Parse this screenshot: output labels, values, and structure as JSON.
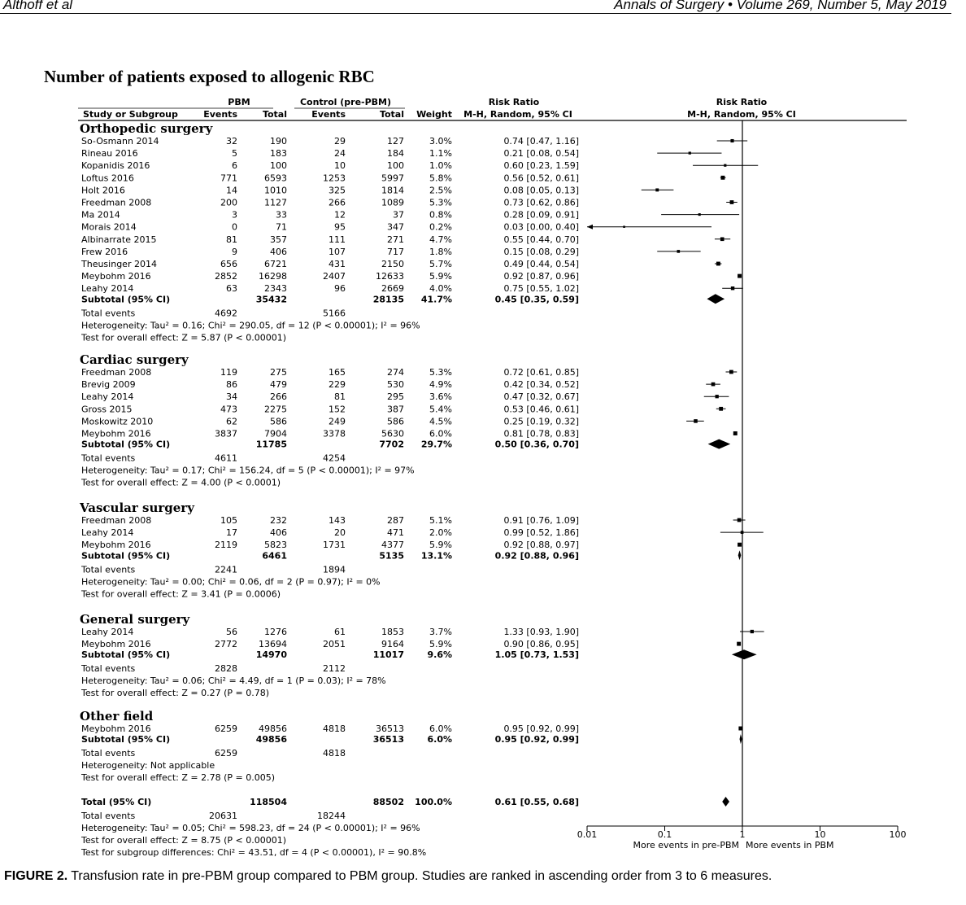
{
  "running_head": {
    "left": "Althoff et al",
    "right": "Annals of Surgery • Volume 269, Number 5, May 2019"
  },
  "figure_title": "Number of patients exposed to allogenic RBC",
  "caption": {
    "label": "FIGURE 2.",
    "text": "Transfusion rate in pre-PBM group compared to PBM group. Studies are ranked in ascending order from 3 to 6 measures."
  },
  "chart_data": {
    "type": "forest",
    "headers": {
      "group_pbm": "PBM",
      "group_control": "Control (pre-PBM)",
      "study": "Study or Subgroup",
      "events": "Events",
      "total": "Total",
      "events2": "Events",
      "total2": "Total",
      "weight": "Weight",
      "rr_title": "Risk Ratio",
      "rr_method": "M-H, Random, 95% CI",
      "plot_title": "Risk Ratio",
      "plot_method": "M-H, Random, 95% CI"
    },
    "groups": [
      {
        "name": "Orthopedic surgery",
        "studies": [
          {
            "name": "So-Osmann 2014",
            "e1": "32",
            "t1": "190",
            "e2": "29",
            "t2": "127",
            "w": "3.0%",
            "ci": "0.74 [0.47, 1.16]",
            "rr": 0.74,
            "lo": 0.47,
            "hi": 1.16
          },
          {
            "name": "Rineau 2016",
            "e1": "5",
            "t1": "183",
            "e2": "24",
            "t2": "184",
            "w": "1.1%",
            "ci": "0.21 [0.08, 0.54]",
            "rr": 0.21,
            "lo": 0.08,
            "hi": 0.54
          },
          {
            "name": "Kopanidis 2016",
            "e1": "6",
            "t1": "100",
            "e2": "10",
            "t2": "100",
            "w": "1.0%",
            "ci": "0.60 [0.23, 1.59]",
            "rr": 0.6,
            "lo": 0.23,
            "hi": 1.59
          },
          {
            "name": "Loftus 2016",
            "e1": "771",
            "t1": "6593",
            "e2": "1253",
            "t2": "5997",
            "w": "5.8%",
            "ci": "0.56 [0.52, 0.61]",
            "rr": 0.56,
            "lo": 0.52,
            "hi": 0.61
          },
          {
            "name": "Holt 2016",
            "e1": "14",
            "t1": "1010",
            "e2": "325",
            "t2": "1814",
            "w": "2.5%",
            "ci": "0.08 [0.05, 0.13]",
            "rr": 0.08,
            "lo": 0.05,
            "hi": 0.13
          },
          {
            "name": "Freedman 2008",
            "e1": "200",
            "t1": "1127",
            "e2": "266",
            "t2": "1089",
            "w": "5.3%",
            "ci": "0.73 [0.62, 0.86]",
            "rr": 0.73,
            "lo": 0.62,
            "hi": 0.86
          },
          {
            "name": "Ma 2014",
            "e1": "3",
            "t1": "33",
            "e2": "12",
            "t2": "37",
            "w": "0.8%",
            "ci": "0.28 [0.09, 0.91]",
            "rr": 0.28,
            "lo": 0.09,
            "hi": 0.91
          },
          {
            "name": "Morais 2014",
            "e1": "0",
            "t1": "71",
            "e2": "95",
            "t2": "347",
            "w": "0.2%",
            "ci": "0.03 [0.00, 0.40]",
            "rr": 0.03,
            "lo": 0.0,
            "hi": 0.4
          },
          {
            "name": "Albinarrate 2015",
            "e1": "81",
            "t1": "357",
            "e2": "111",
            "t2": "271",
            "w": "4.7%",
            "ci": "0.55 [0.44, 0.70]",
            "rr": 0.55,
            "lo": 0.44,
            "hi": 0.7
          },
          {
            "name": "Frew 2016",
            "e1": "9",
            "t1": "406",
            "e2": "107",
            "t2": "717",
            "w": "1.8%",
            "ci": "0.15 [0.08, 0.29]",
            "rr": 0.15,
            "lo": 0.08,
            "hi": 0.29
          },
          {
            "name": "Theusinger 2014",
            "e1": "656",
            "t1": "6721",
            "e2": "431",
            "t2": "2150",
            "w": "5.7%",
            "ci": "0.49 [0.44, 0.54]",
            "rr": 0.49,
            "lo": 0.44,
            "hi": 0.54
          },
          {
            "name": "Meybohm 2016",
            "e1": "2852",
            "t1": "16298",
            "e2": "2407",
            "t2": "12633",
            "w": "5.9%",
            "ci": "0.92 [0.87, 0.96]",
            "rr": 0.92,
            "lo": 0.87,
            "hi": 0.96
          },
          {
            "name": "Leahy 2014",
            "e1": "63",
            "t1": "2343",
            "e2": "96",
            "t2": "2669",
            "w": "4.0%",
            "ci": "0.75 [0.55, 1.02]",
            "rr": 0.75,
            "lo": 0.55,
            "hi": 1.02
          }
        ],
        "subtotal": {
          "name": "Subtotal (95% CI)",
          "t1": "35432",
          "t2": "28135",
          "w": "41.7%",
          "ci": "0.45 [0.35, 0.59]",
          "rr": 0.45,
          "lo": 0.35,
          "hi": 0.59
        },
        "total_events": {
          "label": "Total events",
          "e1": "4692",
          "e2": "5166"
        },
        "heterogeneity": "Heterogeneity: Tau² = 0.16; Chi² = 290.05, df = 12 (P < 0.00001); I² = 96%",
        "overall_effect": "Test for overall effect: Z = 5.87 (P < 0.00001)"
      },
      {
        "name": "Cardiac surgery",
        "studies": [
          {
            "name": "Freedman 2008",
            "e1": "119",
            "t1": "275",
            "e2": "165",
            "t2": "274",
            "w": "5.3%",
            "ci": "0.72 [0.61, 0.85]",
            "rr": 0.72,
            "lo": 0.61,
            "hi": 0.85
          },
          {
            "name": "Brevig 2009",
            "e1": "86",
            "t1": "479",
            "e2": "229",
            "t2": "530",
            "w": "4.9%",
            "ci": "0.42 [0.34, 0.52]",
            "rr": 0.42,
            "lo": 0.34,
            "hi": 0.52
          },
          {
            "name": "Leahy 2014",
            "e1": "34",
            "t1": "266",
            "e2": "81",
            "t2": "295",
            "w": "3.6%",
            "ci": "0.47 [0.32, 0.67]",
            "rr": 0.47,
            "lo": 0.32,
            "hi": 0.67
          },
          {
            "name": "Gross 2015",
            "e1": "473",
            "t1": "2275",
            "e2": "152",
            "t2": "387",
            "w": "5.4%",
            "ci": "0.53 [0.46, 0.61]",
            "rr": 0.53,
            "lo": 0.46,
            "hi": 0.61
          },
          {
            "name": "Moskowitz 2010",
            "e1": "62",
            "t1": "586",
            "e2": "249",
            "t2": "586",
            "w": "4.5%",
            "ci": "0.25 [0.19, 0.32]",
            "rr": 0.25,
            "lo": 0.19,
            "hi": 0.32
          },
          {
            "name": "Meybohm 2016",
            "e1": "3837",
            "t1": "7904",
            "e2": "3378",
            "t2": "5630",
            "w": "6.0%",
            "ci": "0.81 [0.78, 0.83]",
            "rr": 0.81,
            "lo": 0.78,
            "hi": 0.83
          }
        ],
        "subtotal": {
          "name": "Subtotal (95% CI)",
          "t1": "11785",
          "t2": "7702",
          "w": "29.7%",
          "ci": "0.50 [0.36, 0.70]",
          "rr": 0.5,
          "lo": 0.36,
          "hi": 0.7
        },
        "total_events": {
          "label": "Total events",
          "e1": "4611",
          "e2": "4254"
        },
        "heterogeneity": "Heterogeneity: Tau² = 0.17; Chi² = 156.24, df = 5 (P < 0.00001); I² = 97%",
        "overall_effect": "Test for overall effect: Z = 4.00 (P < 0.0001)"
      },
      {
        "name": "Vascular surgery",
        "studies": [
          {
            "name": "Freedman 2008",
            "e1": "105",
            "t1": "232",
            "e2": "143",
            "t2": "287",
            "w": "5.1%",
            "ci": "0.91 [0.76, 1.09]",
            "rr": 0.91,
            "lo": 0.76,
            "hi": 1.09
          },
          {
            "name": "Leahy 2014",
            "e1": "17",
            "t1": "406",
            "e2": "20",
            "t2": "471",
            "w": "2.0%",
            "ci": "0.99 [0.52, 1.86]",
            "rr": 0.99,
            "lo": 0.52,
            "hi": 1.86
          },
          {
            "name": "Meybohm 2016",
            "e1": "2119",
            "t1": "5823",
            "e2": "1731",
            "t2": "4377",
            "w": "5.9%",
            "ci": "0.92 [0.88, 0.97]",
            "rr": 0.92,
            "lo": 0.88,
            "hi": 0.97
          }
        ],
        "subtotal": {
          "name": "Subtotal (95% CI)",
          "t1": "6461",
          "t2": "5135",
          "w": "13.1%",
          "ci": "0.92 [0.88, 0.96]",
          "rr": 0.92,
          "lo": 0.88,
          "hi": 0.96
        },
        "total_events": {
          "label": "Total events",
          "e1": "2241",
          "e2": "1894"
        },
        "heterogeneity": "Heterogeneity: Tau² = 0.00; Chi² = 0.06, df = 2 (P = 0.97); I² = 0%",
        "overall_effect": "Test for overall effect: Z = 3.41 (P = 0.0006)"
      },
      {
        "name": "General surgery",
        "studies": [
          {
            "name": "Leahy 2014",
            "e1": "56",
            "t1": "1276",
            "e2": "61",
            "t2": "1853",
            "w": "3.7%",
            "ci": "1.33 [0.93, 1.90]",
            "rr": 1.33,
            "lo": 0.93,
            "hi": 1.9
          },
          {
            "name": "Meybohm 2016",
            "e1": "2772",
            "t1": "13694",
            "e2": "2051",
            "t2": "9164",
            "w": "5.9%",
            "ci": "0.90 [0.86, 0.95]",
            "rr": 0.9,
            "lo": 0.86,
            "hi": 0.95
          }
        ],
        "subtotal": {
          "name": "Subtotal (95% CI)",
          "t1": "14970",
          "t2": "11017",
          "w": "9.6%",
          "ci": "1.05 [0.73, 1.53]",
          "rr": 1.05,
          "lo": 0.73,
          "hi": 1.53
        },
        "total_events": {
          "label": "Total events",
          "e1": "2828",
          "e2": "2112"
        },
        "heterogeneity": "Heterogeneity: Tau² = 0.06; Chi² = 4.49, df = 1 (P = 0.03); I² = 78%",
        "overall_effect": "Test for overall effect: Z = 0.27 (P = 0.78)"
      },
      {
        "name": "Other field",
        "studies": [
          {
            "name": "Meybohm 2016",
            "e1": "6259",
            "t1": "49856",
            "e2": "4818",
            "t2": "36513",
            "w": "6.0%",
            "ci": "0.95 [0.92, 0.99]",
            "rr": 0.95,
            "lo": 0.92,
            "hi": 0.99
          }
        ],
        "subtotal": {
          "name": "Subtotal (95% CI)",
          "t1": "49856",
          "t2": "36513",
          "w": "6.0%",
          "ci": "0.95 [0.92, 0.99]",
          "rr": 0.95,
          "lo": 0.92,
          "hi": 0.99
        },
        "total_events": {
          "label": "Total events",
          "e1": "6259",
          "e2": "4818"
        },
        "heterogeneity": "Heterogeneity: Not applicable",
        "overall_effect": "Test for overall effect: Z = 2.78 (P = 0.005)"
      }
    ],
    "overall": {
      "name": "Total (95% CI)",
      "t1": "118504",
      "t2": "88502",
      "w": "100.0%",
      "ci": "0.61 [0.55, 0.68]",
      "rr": 0.61,
      "lo": 0.55,
      "hi": 0.68,
      "total_events": {
        "label": "Total events",
        "e1": "20631",
        "e2": "18244"
      },
      "heterogeneity": "Heterogeneity: Tau² = 0.05; Chi² = 598.23, df = 24 (P < 0.00001); I² = 96%",
      "overall_effect": "Test for overall effect: Z = 8.75 (P < 0.00001)",
      "subgroup_test": "Test for subgroup differences: Chi² = 43.51, df = 4 (P < 0.00001), I² = 90.8%"
    },
    "axis": {
      "scale": "log",
      "range": [
        0.01,
        100
      ],
      "ticks": [
        0.01,
        0.1,
        1,
        10,
        100
      ],
      "tick_labels": [
        "0.01",
        "0.1",
        "1",
        "10",
        "100"
      ],
      "reference_line": 1,
      "favours_left": "More events in pre-PBM",
      "favours_right": "More events in PBM"
    }
  }
}
